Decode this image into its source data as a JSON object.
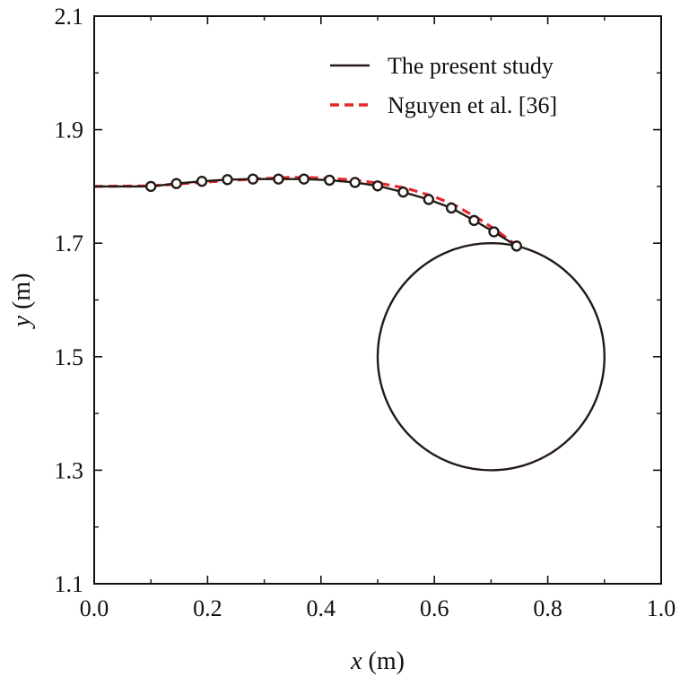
{
  "chart_data": {
    "type": "line",
    "title": "",
    "xlabel": {
      "var": "x",
      "unit": " (m)"
    },
    "ylabel": {
      "var": "y",
      "unit": " (m)"
    },
    "xlim": [
      0.0,
      1.0
    ],
    "ylim": [
      1.1,
      2.1
    ],
    "xticks": [
      "0.0",
      "0.2",
      "0.4",
      "0.6",
      "0.8",
      "1.0"
    ],
    "yticks": [
      "1.1",
      "1.3",
      "1.5",
      "1.7",
      "1.9",
      "2.1"
    ],
    "grid": false,
    "legend_position": "top-right",
    "series": [
      {
        "name": "The present study",
        "color": "#231a16",
        "style": "solid",
        "markers": "open-circle",
        "x": [
          0.0,
          0.1,
          0.145,
          0.19,
          0.235,
          0.28,
          0.325,
          0.37,
          0.415,
          0.46,
          0.5,
          0.545,
          0.59,
          0.63,
          0.67,
          0.705,
          0.745
        ],
        "y": [
          1.8,
          1.8,
          1.805,
          1.809,
          1.812,
          1.813,
          1.813,
          1.813,
          1.811,
          1.807,
          1.801,
          1.79,
          1.777,
          1.762,
          1.74,
          1.72,
          1.695
        ]
      },
      {
        "name": "Nguyen et al. [36]",
        "color": "#e8262b",
        "style": "dashed",
        "markers": "none",
        "x": [
          0.0,
          0.1,
          0.2,
          0.3,
          0.35,
          0.4,
          0.45,
          0.5,
          0.55,
          0.6,
          0.64,
          0.68,
          0.71,
          0.74
        ],
        "y": [
          1.8,
          1.801,
          1.808,
          1.814,
          1.816,
          1.815,
          1.812,
          1.806,
          1.797,
          1.782,
          1.765,
          1.742,
          1.722,
          1.7
        ]
      }
    ],
    "annotations": [
      {
        "type": "circle",
        "center": [
          0.7,
          1.5
        ],
        "radius": 0.2,
        "color": "#231a16"
      }
    ]
  }
}
